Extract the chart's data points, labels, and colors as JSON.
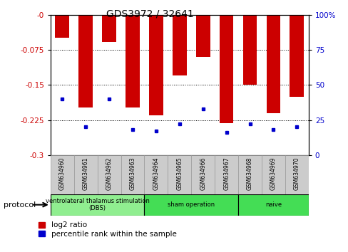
{
  "title": "GDS3972 / 32641",
  "samples": [
    "GSM634960",
    "GSM634961",
    "GSM634962",
    "GSM634963",
    "GSM634964",
    "GSM634965",
    "GSM634966",
    "GSM634967",
    "GSM634968",
    "GSM634969",
    "GSM634970"
  ],
  "log2_ratio": [
    -0.048,
    -0.198,
    -0.058,
    -0.198,
    -0.215,
    -0.13,
    -0.09,
    -0.232,
    -0.15,
    -0.21,
    -0.175
  ],
  "percentile_rank": [
    40,
    20,
    40,
    18,
    17,
    22,
    33,
    16,
    22,
    18,
    20
  ],
  "ylim_left": [
    -0.3,
    0
  ],
  "ylim_right": [
    0,
    100
  ],
  "yticks_left": [
    0,
    -0.075,
    -0.15,
    -0.225,
    -0.3
  ],
  "yticks_right": [
    100,
    75,
    50,
    25,
    0
  ],
  "bar_color": "#cc0000",
  "dot_color": "#0000cc",
  "groups": [
    {
      "label": "ventrolateral thalamus stimulation\n(DBS)",
      "start": 0,
      "end": 3,
      "color": "#90ee90"
    },
    {
      "label": "sham operation",
      "start": 4,
      "end": 7,
      "color": "#44dd55"
    },
    {
      "label": "naive",
      "start": 8,
      "end": 10,
      "color": "#44dd55"
    }
  ],
  "protocol_label": "protocol",
  "legend_log2": "log2 ratio",
  "legend_pct": "percentile rank within the sample",
  "left_label_color": "#cc0000",
  "right_label_color": "#0000cc",
  "bg_color": "#ffffff",
  "grid_color": "#000000",
  "tick_box_color": "#cccccc",
  "tick_box_edge": "#999999"
}
